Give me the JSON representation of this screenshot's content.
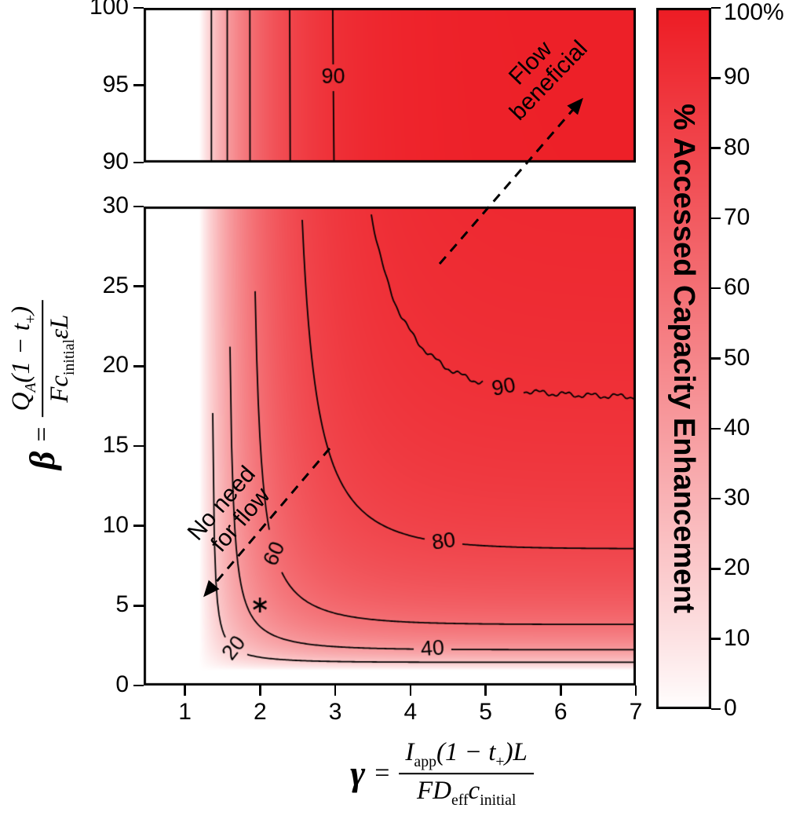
{
  "figure": {
    "bg": "#ffffff",
    "red": "#ED1C24",
    "contour_color": "#000000"
  },
  "chart_data": {
    "type": "contour",
    "title": "",
    "x_axis": {
      "range": [
        0.45,
        7
      ],
      "tick_values": [
        1,
        2,
        3,
        4,
        5,
        6,
        7
      ],
      "ticks": [
        "1",
        "2",
        "3",
        "4",
        "5",
        "6",
        "7"
      ]
    },
    "y_axis_main": {
      "range": [
        0,
        30
      ],
      "tick_values": [
        0,
        5,
        10,
        15,
        20,
        25,
        30
      ],
      "ticks": [
        "0",
        "5",
        "10",
        "15",
        "20",
        "25",
        "30"
      ]
    },
    "y_axis_top": {
      "range": [
        90,
        100
      ],
      "tick_values": [
        90,
        95,
        100
      ],
      "ticks": [
        "90",
        "95",
        "100"
      ]
    },
    "xlabel": {
      "sym": "γ",
      "eq": "=",
      "n1": "I",
      "n1s": "app",
      "n2": "(1 − t",
      "n2s": "+",
      "n3": ")L",
      "d1": "FD",
      "d1s": "eff",
      "d2": "c",
      "d2s": "initial"
    },
    "ylabel": {
      "sym": "β",
      "eq": "=",
      "n1": "Q",
      "n1s": "A",
      "n2": "(1 − t",
      "n2s": "+",
      "n3": ")",
      "d1": "Fc",
      "d1s": "initial",
      "d2": "εL"
    },
    "contour_levels": [
      20,
      40,
      60,
      80,
      90
    ],
    "contour_labels": {
      "main": [
        {
          "level": "20",
          "gamma": 1.66,
          "rot": -52
        },
        {
          "level": "60",
          "gamma": 2.2,
          "rot": -66
        },
        {
          "level": "40",
          "gamma": 4.3,
          "rot": -4
        },
        {
          "level": "80",
          "gamma": 4.45,
          "rot": -8
        },
        {
          "level": "90",
          "gamma": 5.25,
          "rot": -11
        }
      ],
      "top": [
        {
          "level": "90",
          "beta": 95.5,
          "rot": 0
        }
      ]
    },
    "field_model": {
      "form": "E = 100*(1-exp(-a*(gamma-g0)))*(1-c/(beta+d))",
      "a": 1.4,
      "g0": 1.19,
      "c": 1.9,
      "d": 0.97
    },
    "marker": {
      "gamma": 2.0,
      "beta": 5.0,
      "symbol": "asterisk"
    },
    "colorbar": {
      "label": "% Accessed Capacity Enhancement",
      "range": [
        0,
        100
      ],
      "tick_values": [
        100,
        90,
        80,
        70,
        60,
        50,
        40,
        30,
        20,
        10,
        0
      ],
      "tick_labels": [
        "100%",
        "90",
        "80",
        "70",
        "60",
        "50",
        "40",
        "30",
        "20",
        "10",
        "0"
      ]
    },
    "annotations": {
      "flow": {
        "line1": "Flow",
        "line2": "beneficial"
      },
      "no_flow": {
        "line1": "No need",
        "line2": "for flow"
      }
    }
  }
}
